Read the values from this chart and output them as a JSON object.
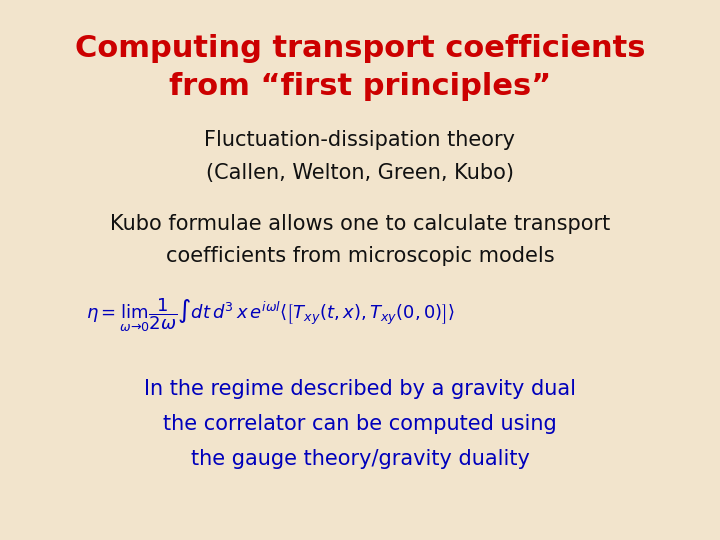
{
  "background_color": "#f2e4cc",
  "title_line1": "Computing transport coefficients",
  "title_line2": "from “first principles”",
  "title_color": "#cc0000",
  "title_fontsize": 22,
  "subtitle_line1": "Fluctuation-dissipation theory",
  "subtitle_line2": "(Callen, Welton, Green, Kubo)",
  "subtitle_color": "#111111",
  "subtitle_fontsize": 15,
  "body1_line1": "Kubo formulae allows one to calculate transport",
  "body1_line2": "coefficients from microscopic models",
  "body1_color": "#111111",
  "body1_fontsize": 15,
  "formula_color": "#0000bb",
  "formula_fontsize": 13,
  "body2_line1": "In the regime described by a gravity dual",
  "body2_line2": "the correlator can be computed using",
  "body2_line3": "the gauge theory/gravity duality",
  "body2_color": "#0000bb",
  "body2_fontsize": 15,
  "fig_width": 7.2,
  "fig_height": 5.4,
  "dpi": 100
}
